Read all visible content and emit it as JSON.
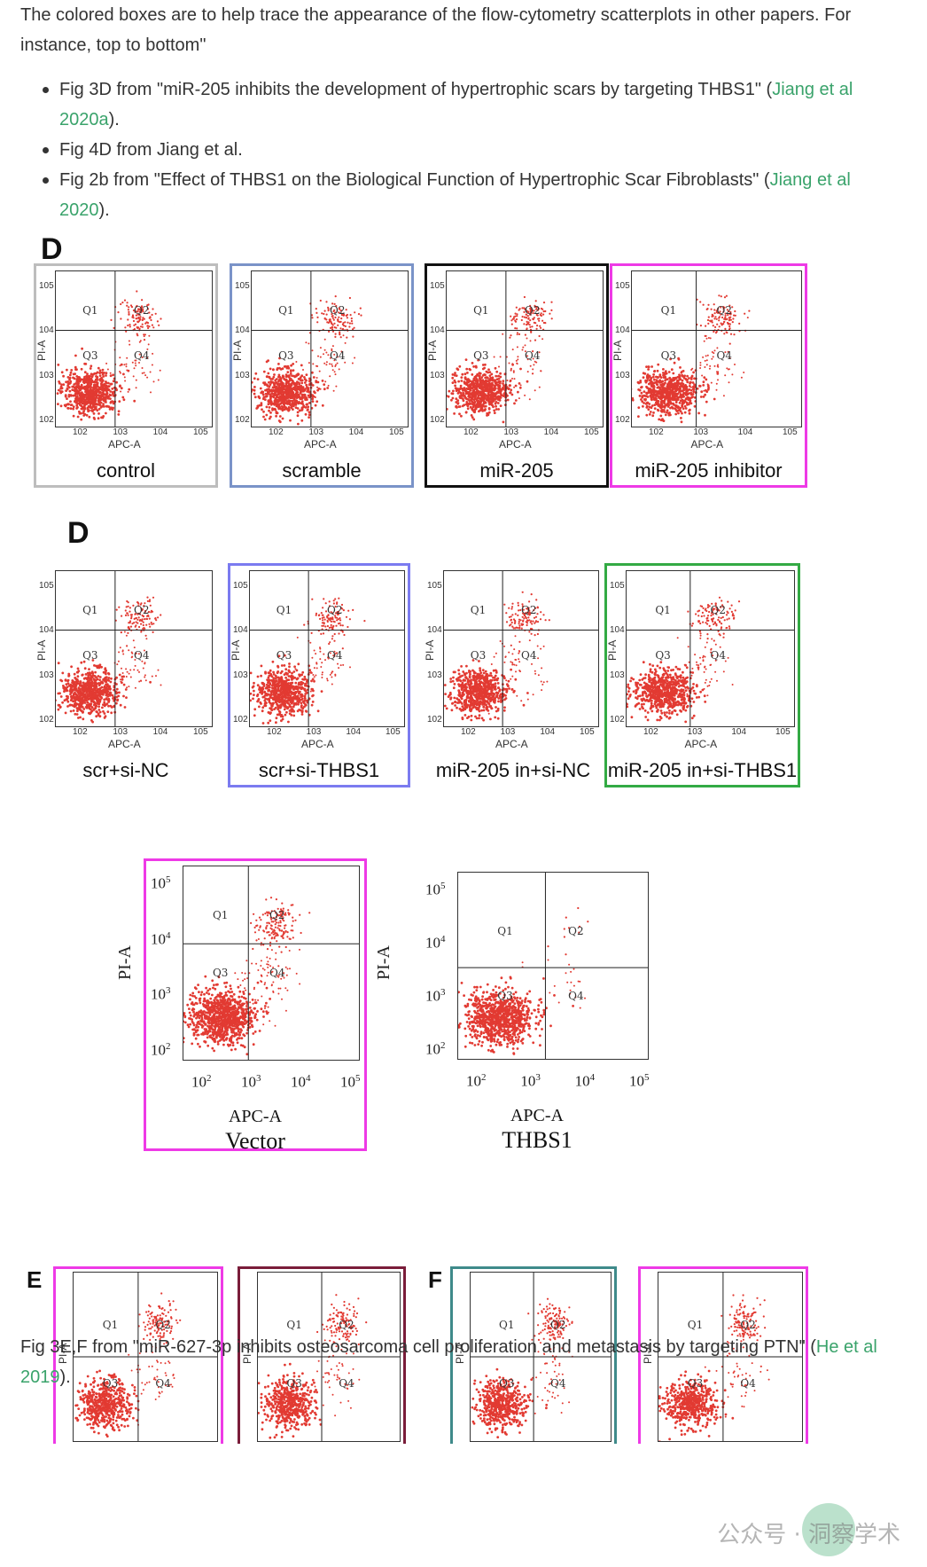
{
  "intro": "The colored boxes are to help trace the appearance of the flow-cytometry scatterplots in other papers. For instance, top to bottom\"",
  "bullets": [
    {
      "before": "Fig 3D from \"miR-205 inhibits the development of hypertrophic scars by targeting THBS1\" (",
      "link": "Jiang et al 2020a",
      "after": ")."
    },
    {
      "before": "Fig 4D from Jiang et al.",
      "link": "",
      "after": ""
    },
    {
      "before": "Fig 2b from \"Effect of THBS1 on the Biological Function of Hypertrophic Scar Fibroblasts\" (",
      "link": "Jiang et al 2020",
      "after": ")."
    }
  ],
  "para2": {
    "before": "Fig 3E,F from \"miR-627-3p inhibits osteosarcoma cell proliferation and metastasis by targeting PTN\" (",
    "link": "He et al 2019",
    "after": ")."
  },
  "colors": {
    "gray": "#bdbdbd",
    "blue": "#7a93c8",
    "black": "#111111",
    "magenta": "#ee3ae6",
    "violet": "#7b7bf0",
    "green": "#33aa44",
    "maroon": "#7a1d3a",
    "teal": "#3f8a8a",
    "link": "#3aa36b",
    "dots": "#e23a32"
  },
  "figs": {
    "row1": {
      "letter": "D",
      "captions": [
        "control",
        "scramble",
        "miR-205",
        "miR-205 inhibitor"
      ]
    },
    "row2": {
      "letter": "D",
      "captions": [
        "scr+si-NC",
        "scr+si-THBS1",
        "miR-205 in+si-NC",
        "miR-205 in+si-THBS1"
      ]
    },
    "row3": {
      "captions": [
        "Vector",
        "THBS1"
      ],
      "xlabel": "APC-A",
      "ylabel": "PI-A",
      "xticks": [
        "10",
        "10",
        "10",
        "10"
      ],
      "xexp": [
        "2",
        "3",
        "4",
        "5"
      ],
      "yticks": [
        "10",
        "10",
        "10",
        "10"
      ],
      "yexp": [
        "5",
        "4",
        "3",
        "2"
      ]
    },
    "row4": {
      "letters": [
        "E",
        "F"
      ]
    }
  },
  "plot_labels": {
    "q1": "Q1",
    "q2": "Q2",
    "q3": "Q3",
    "q4": "Q4",
    "x": "APC-A",
    "y": "PI-A",
    "ten": "10",
    "e2": "2",
    "e3": "3",
    "e4": "4",
    "e5": "5"
  },
  "watermark": "公众号 · 洞察学术"
}
